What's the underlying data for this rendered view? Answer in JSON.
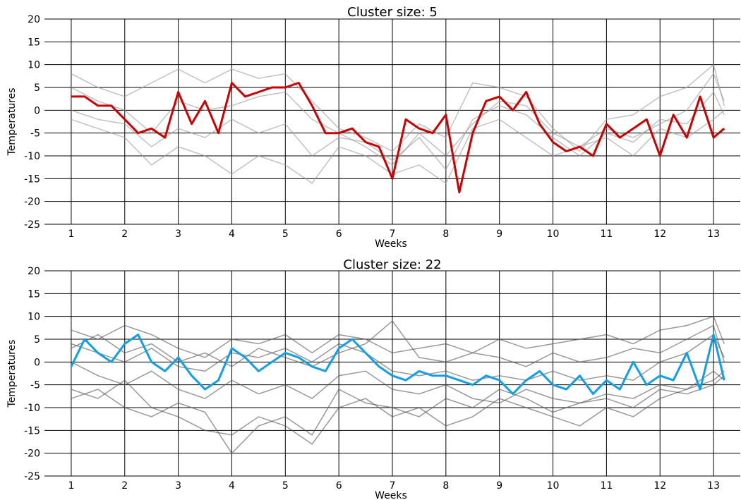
{
  "chart_data": [
    {
      "type": "line",
      "title": "Cluster size: 5",
      "xlabel": "Weeks",
      "ylabel": "Temperatures",
      "xlim": [
        0.5,
        13.5
      ],
      "ylim": [
        -25,
        20
      ],
      "xticks": [
        1,
        2,
        3,
        4,
        5,
        6,
        7,
        8,
        9,
        10,
        11,
        12,
        13
      ],
      "yticks": [
        20,
        15,
        10,
        5,
        0,
        -5,
        -10,
        -15,
        -20,
        -25
      ],
      "grid": true,
      "member_color": "#9a9a9a",
      "highlight_color": "#cc0000",
      "highlight": {
        "name": "",
        "x": [
          1.0,
          1.25,
          1.5,
          1.75,
          2.0,
          2.25,
          2.5,
          2.75,
          3.0,
          3.25,
          3.5,
          3.75,
          4.0,
          4.25,
          4.5,
          4.75,
          5.0,
          5.25,
          5.5,
          5.75,
          6.0,
          6.25,
          6.5,
          6.75,
          7.0,
          7.25,
          7.5,
          7.75,
          8.0,
          8.25,
          8.5,
          8.75,
          9.0,
          9.25,
          9.5,
          9.75,
          10.0,
          10.25,
          10.5,
          10.75,
          11.0,
          11.25,
          11.5,
          11.75,
          12.0,
          12.25,
          12.5,
          12.75,
          13.0,
          13.2
        ],
        "values": [
          3,
          3,
          1,
          1,
          -2,
          -5,
          -4,
          -6,
          4,
          -3,
          2,
          -5,
          6,
          3,
          4,
          5,
          5,
          6,
          1,
          -5,
          -5,
          -4,
          -7,
          -8,
          -15,
          -2,
          -4,
          -5,
          -1,
          -18,
          -5,
          2,
          3,
          0,
          4,
          -3,
          -7,
          -9,
          -8,
          -10,
          -3,
          -6,
          -4,
          -2,
          -10,
          -1,
          -6,
          3,
          -6,
          -4
        ]
      },
      "members": [
        {
          "name": "",
          "x": [
            1.0,
            1.5,
            2.0,
            2.5,
            3.0,
            3.5,
            4.0,
            4.5,
            5.0,
            5.5,
            6.0,
            6.5,
            7.0,
            7.5,
            8.0,
            8.5,
            9.0,
            9.5,
            10.0,
            10.5,
            11.0,
            11.5,
            12.0,
            12.5,
            13.0,
            13.2
          ],
          "values": [
            5,
            2,
            0,
            -5,
            2,
            0,
            1,
            3,
            4,
            -2,
            -5,
            -8,
            -12,
            -5,
            -10,
            -3,
            2,
            1,
            -5,
            -8,
            -4,
            -6,
            -3,
            0,
            8,
            2
          ]
        },
        {
          "name": "",
          "x": [
            1.0,
            1.5,
            2.0,
            2.5,
            3.0,
            3.5,
            4.0,
            4.5,
            5.0,
            5.5,
            6.0,
            6.5,
            7.0,
            7.5,
            8.0,
            8.5,
            9.0,
            9.5,
            10.0,
            10.5,
            11.0,
            11.5,
            12.0,
            12.5,
            13.0,
            13.2
          ],
          "values": [
            -2,
            -4,
            -6,
            -12,
            -8,
            -10,
            -14,
            -10,
            -12,
            -16,
            -8,
            -10,
            -14,
            -12,
            -16,
            -4,
            -2,
            -6,
            -10,
            -8,
            -6,
            -10,
            -4,
            -6,
            -2,
            0
          ]
        },
        {
          "name": "",
          "x": [
            1.0,
            1.5,
            2.0,
            2.5,
            3.0,
            3.5,
            4.0,
            4.5,
            5.0,
            5.5,
            6.0,
            6.5,
            7.0,
            7.5,
            8.0,
            8.5,
            9.0,
            9.5,
            10.0,
            10.5,
            11.0,
            11.5,
            12.0,
            12.5,
            13.0,
            13.2
          ],
          "values": [
            8,
            5,
            3,
            6,
            9,
            6,
            9,
            7,
            8,
            2,
            -4,
            -6,
            -9,
            -3,
            -6,
            6,
            5,
            3,
            -4,
            -9,
            -2,
            -1,
            3,
            5,
            10,
            1
          ]
        },
        {
          "name": "",
          "x": [
            1.0,
            1.5,
            2.0,
            2.5,
            3.0,
            3.5,
            4.0,
            4.5,
            5.0,
            5.5,
            6.0,
            6.5,
            7.0,
            7.5,
            8.0,
            8.5,
            9.0,
            9.5,
            10.0,
            10.5,
            11.0,
            11.5,
            12.0,
            12.5,
            13.0,
            13.2
          ],
          "values": [
            0,
            -2,
            -3,
            -8,
            -4,
            -6,
            -2,
            -5,
            -3,
            -10,
            -6,
            -7,
            -11,
            -6,
            -13,
            -2,
            1,
            -1,
            -6,
            -10,
            -5,
            -7,
            -2,
            -3,
            4,
            -1
          ]
        }
      ]
    },
    {
      "type": "line",
      "title": "Cluster size: 22",
      "xlabel": "Weeks",
      "ylabel": "Temperatures",
      "xlim": [
        0.5,
        13.5
      ],
      "ylim": [
        -25,
        20
      ],
      "xticks": [
        1,
        2,
        3,
        4,
        5,
        6,
        7,
        8,
        9,
        10,
        11,
        12,
        13
      ],
      "yticks": [
        20,
        15,
        10,
        5,
        0,
        -5,
        -10,
        -15,
        -20,
        -25
      ],
      "grid": true,
      "member_color": "#555555",
      "highlight_color": "#129fe8",
      "highlight": {
        "name": "",
        "x": [
          1.0,
          1.25,
          1.5,
          1.75,
          2.0,
          2.25,
          2.5,
          2.75,
          3.0,
          3.25,
          3.5,
          3.75,
          4.0,
          4.25,
          4.5,
          4.75,
          5.0,
          5.25,
          5.5,
          5.75,
          6.0,
          6.25,
          6.5,
          6.75,
          7.0,
          7.25,
          7.5,
          7.75,
          8.0,
          8.25,
          8.5,
          8.75,
          9.0,
          9.25,
          9.5,
          9.75,
          10.0,
          10.25,
          10.5,
          10.75,
          11.0,
          11.25,
          11.5,
          11.75,
          12.0,
          12.25,
          12.5,
          12.75,
          13.0,
          13.2
        ],
        "values": [
          -1,
          5,
          2,
          0,
          4,
          6,
          0,
          -2,
          1,
          -3,
          -6,
          -4,
          3,
          1,
          -2,
          0,
          2,
          1,
          -1,
          -2,
          3,
          5,
          2,
          -1,
          -3,
          -4,
          -2,
          -3,
          -3,
          -4,
          -5,
          -3,
          -4,
          -7,
          -4,
          -2,
          -5,
          -6,
          -3,
          -7,
          -4,
          -6,
          0,
          -5,
          -3,
          -4,
          2,
          -6,
          6,
          -4
        ]
      },
      "members": [
        {
          "name": "",
          "x": [
            1.0,
            1.5,
            2.0,
            2.5,
            3.0,
            3.5,
            4.0,
            4.5,
            5.0,
            5.5,
            6.0,
            6.5,
            7.0,
            7.5,
            8.0,
            8.5,
            9.0,
            9.5,
            10.0,
            10.5,
            11.0,
            11.5,
            12.0,
            12.5,
            13.0,
            13.2
          ],
          "values": [
            4,
            2,
            0,
            3,
            -1,
            -2,
            2,
            1,
            3,
            0,
            4,
            2,
            -2,
            -3,
            -2,
            -4,
            -3,
            -4,
            -2,
            -4,
            -3,
            -4,
            0,
            2,
            6,
            1
          ]
        },
        {
          "name": "",
          "x": [
            1.0,
            1.5,
            2.0,
            2.5,
            3.0,
            3.5,
            4.0,
            4.5,
            5.0,
            5.5,
            6.0,
            6.5,
            7.0,
            7.5,
            8.0,
            8.5,
            9.0,
            9.5,
            10.0,
            10.5,
            11.0,
            11.5,
            12.0,
            12.5,
            13.0,
            13.2
          ],
          "values": [
            -6,
            -8,
            -4,
            -10,
            -12,
            -15,
            -16,
            -12,
            -14,
            -18,
            -10,
            -8,
            -12,
            -10,
            -14,
            -12,
            -8,
            -10,
            -12,
            -14,
            -10,
            -12,
            -8,
            -6,
            -4,
            -2
          ]
        },
        {
          "name": "",
          "x": [
            1.0,
            1.5,
            2.0,
            2.5,
            3.0,
            3.5,
            4.0,
            4.5,
            5.0,
            5.5,
            6.0,
            6.5,
            7.0,
            7.5,
            8.0,
            8.5,
            9.0,
            9.5,
            10.0,
            10.5,
            11.0,
            11.5,
            12.0,
            12.5,
            13.0,
            13.2
          ],
          "values": [
            7,
            5,
            8,
            6,
            3,
            1,
            5,
            4,
            6,
            2,
            6,
            5,
            2,
            3,
            4,
            2,
            5,
            3,
            4,
            5,
            6,
            4,
            7,
            8,
            10,
            4
          ]
        },
        {
          "name": "",
          "x": [
            1.0,
            1.5,
            2.0,
            2.5,
            3.0,
            3.5,
            4.0,
            4.5,
            5.0,
            5.5,
            6.0,
            6.5,
            7.0,
            7.5,
            8.0,
            8.5,
            9.0,
            9.5,
            10.0,
            10.5,
            11.0,
            11.5,
            12.0,
            12.5,
            13.0,
            13.2
          ],
          "values": [
            0,
            -3,
            -5,
            -2,
            -6,
            -8,
            -4,
            -7,
            -5,
            -8,
            -3,
            -2,
            -6,
            -7,
            -5,
            -8,
            -9,
            -6,
            -8,
            -9,
            -7,
            -8,
            -5,
            -6,
            -2,
            -4
          ]
        },
        {
          "name": "",
          "x": [
            1.0,
            1.5,
            2.0,
            2.5,
            3.0,
            3.5,
            4.0,
            4.5,
            5.0,
            5.5,
            6.0,
            6.5,
            7.0,
            7.5,
            8.0,
            8.5,
            9.0,
            9.5,
            10.0,
            10.5,
            11.0,
            11.5,
            12.0,
            12.5,
            13.0,
            13.2
          ],
          "values": [
            -8,
            -6,
            -10,
            -12,
            -9,
            -11,
            -20,
            -14,
            -12,
            -16,
            -6,
            -9,
            -10,
            -12,
            -8,
            -10,
            -6,
            -8,
            -11,
            -9,
            -8,
            -10,
            -6,
            -7,
            -5,
            -3
          ]
        },
        {
          "name": "",
          "x": [
            1.0,
            1.5,
            2.0,
            2.5,
            3.0,
            3.5,
            4.0,
            4.5,
            5.0,
            5.5,
            6.0,
            6.5,
            7.0,
            7.5,
            8.0,
            8.5,
            9.0,
            9.5,
            10.0,
            10.5,
            11.0,
            11.5,
            12.0,
            12.5,
            13.0,
            13.2
          ],
          "values": [
            3,
            6,
            2,
            4,
            0,
            2,
            -1,
            3,
            1,
            -1,
            2,
            4,
            9,
            1,
            0,
            2,
            1,
            -1,
            2,
            0,
            1,
            3,
            2,
            5,
            8,
            0
          ]
        }
      ]
    }
  ]
}
